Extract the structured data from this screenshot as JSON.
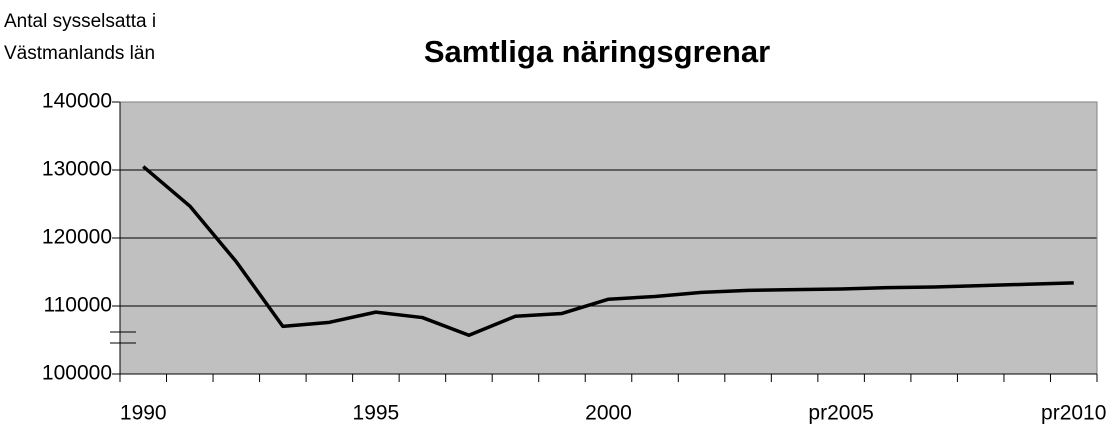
{
  "chart_data": {
    "type": "line",
    "title": "Samtliga näringsgrenar",
    "ylabel": [
      "Antal sysselsatta i",
      "Västmanlands län"
    ],
    "categories": [
      "1990",
      null,
      null,
      null,
      null,
      "1995",
      null,
      null,
      null,
      null,
      "2000",
      null,
      null,
      null,
      null,
      "pr2005",
      null,
      null,
      null,
      null,
      "pr2010"
    ],
    "series": [
      {
        "name": "Samtliga näringsgrenar",
        "color": "#000000",
        "values": [
          130500,
          124700,
          116500,
          107000,
          107600,
          109100,
          108300,
          105700,
          108500,
          108900,
          111000,
          111400,
          112000,
          112300,
          112400,
          112500,
          112700,
          112800,
          113000,
          113200,
          113400
        ]
      }
    ],
    "ylim": [
      100000,
      140000
    ],
    "yticks": [
      100000,
      110000,
      120000,
      130000,
      140000
    ],
    "grid": true
  }
}
